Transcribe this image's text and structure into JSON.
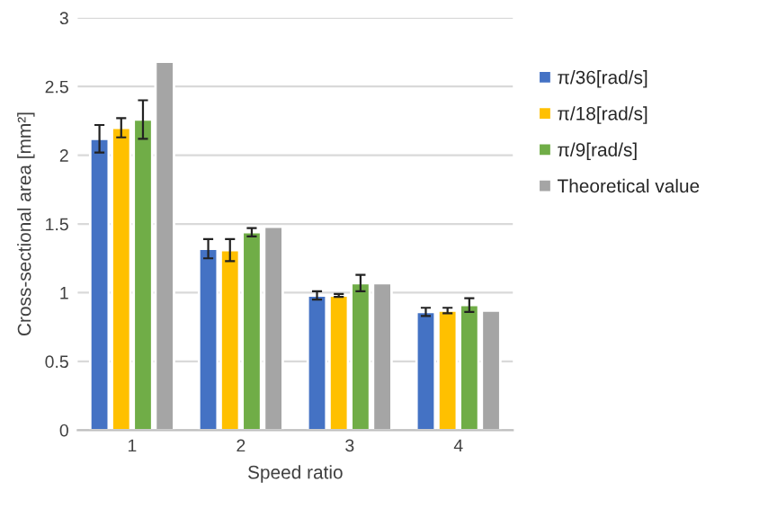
{
  "chart_data": {
    "type": "bar",
    "xlabel": "Speed ratio",
    "ylabel": "Cross-sectional area [mm²]",
    "categories": [
      "1",
      "2",
      "3",
      "4"
    ],
    "series": [
      {
        "name": "π/36[rad/s]",
        "color": "#4472c4",
        "values": [
          2.12,
          1.32,
          0.98,
          0.86
        ],
        "errors": [
          0.1,
          0.07,
          0.03,
          0.03
        ]
      },
      {
        "name": "π/18[rad/s]",
        "color": "#ffc000",
        "values": [
          2.2,
          1.31,
          0.98,
          0.87
        ],
        "errors": [
          0.07,
          0.08,
          0.01,
          0.02
        ]
      },
      {
        "name": "π/9[rad/s]",
        "color": "#70ad47",
        "values": [
          2.26,
          1.44,
          1.07,
          0.91
        ],
        "errors": [
          0.14,
          0.03,
          0.06,
          0.05
        ]
      },
      {
        "name": "Theoretical value",
        "color": "#a5a5a5",
        "values": [
          2.68,
          1.48,
          1.07,
          0.87
        ]
      }
    ],
    "ylim": [
      0,
      3
    ],
    "yticks": [
      0,
      0.5,
      1,
      1.5,
      2,
      2.5,
      3
    ],
    "grid": "y",
    "legend": "right"
  }
}
